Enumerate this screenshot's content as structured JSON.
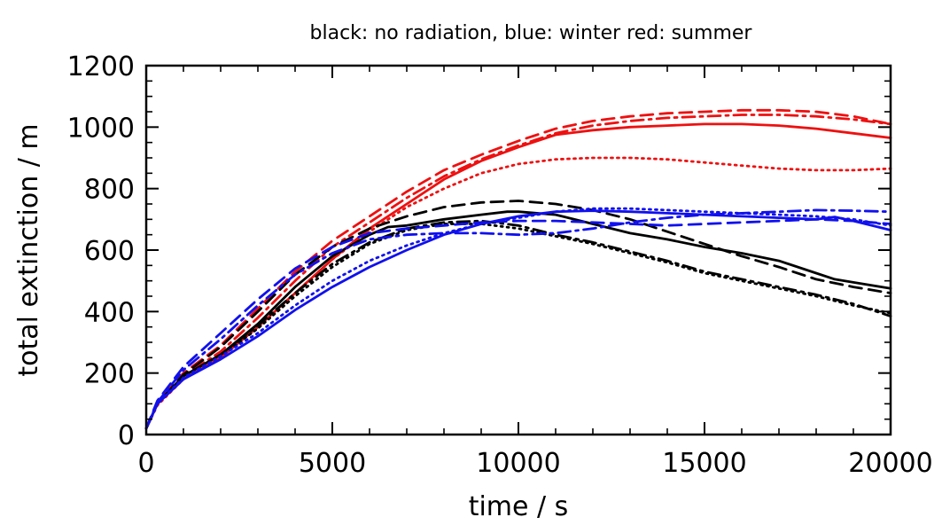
{
  "chart_data": {
    "type": "line",
    "title": "black: no radiation, blue: winter red: summer",
    "xlabel": "time / s",
    "ylabel": "total extinction / m",
    "xlim": [
      0,
      20000
    ],
    "ylim": [
      0,
      1200
    ],
    "xticks": [
      0,
      5000,
      10000,
      15000,
      20000
    ],
    "yticks": [
      0,
      200,
      400,
      600,
      800,
      1000,
      1200
    ],
    "grid": false,
    "colors": {
      "black": "#000000",
      "blue": "#1010ee",
      "red": "#ee1010"
    },
    "series": [
      {
        "color": "red",
        "dash": "solid",
        "x": [
          0,
          300,
          1000,
          2000,
          3000,
          4000,
          5000,
          6000,
          7000,
          8000,
          9000,
          10000,
          11000,
          12000,
          13000,
          14000,
          15000,
          16000,
          17000,
          18000,
          19000,
          20000
        ],
        "y": [
          20,
          100,
          180,
          250,
          350,
          460,
          570,
          670,
          750,
          830,
          890,
          935,
          975,
          990,
          1000,
          1005,
          1010,
          1010,
          1005,
          995,
          980,
          965
        ]
      },
      {
        "color": "red",
        "dash": "dashed",
        "x": [
          0,
          300,
          1000,
          2000,
          3000,
          4000,
          5000,
          6000,
          7000,
          8000,
          9000,
          10000,
          11000,
          12000,
          13000,
          14000,
          15000,
          16000,
          17000,
          18000,
          19000,
          20000
        ],
        "y": [
          20,
          105,
          200,
          290,
          410,
          530,
          630,
          710,
          790,
          860,
          910,
          955,
          995,
          1020,
          1035,
          1045,
          1050,
          1055,
          1055,
          1050,
          1035,
          1010
        ]
      },
      {
        "color": "red",
        "dash": "dashdot",
        "x": [
          0,
          300,
          1000,
          2000,
          3000,
          4000,
          5000,
          6000,
          7000,
          8000,
          9000,
          10000,
          11000,
          12000,
          13000,
          14000,
          15000,
          16000,
          17000,
          18000,
          19000,
          20000
        ],
        "y": [
          20,
          100,
          190,
          270,
          380,
          500,
          610,
          690,
          770,
          840,
          895,
          940,
          980,
          1005,
          1020,
          1030,
          1035,
          1040,
          1040,
          1035,
          1025,
          1010
        ]
      },
      {
        "color": "red",
        "dash": "dotted",
        "x": [
          0,
          300,
          1000,
          2000,
          3000,
          4000,
          5000,
          6000,
          7000,
          8000,
          9000,
          10000,
          11000,
          12000,
          13000,
          14000,
          15000,
          16000,
          17000,
          18000,
          19000,
          20000
        ],
        "y": [
          20,
          95,
          180,
          250,
          350,
          460,
          570,
          660,
          740,
          800,
          850,
          880,
          895,
          900,
          900,
          895,
          885,
          875,
          865,
          860,
          860,
          865
        ]
      },
      {
        "color": "black",
        "dash": "solid",
        "x": [
          0,
          300,
          1000,
          2000,
          3000,
          4000,
          5000,
          6000,
          6500,
          7000,
          8000,
          9000,
          9700,
          10000,
          11000,
          12000,
          13000,
          14000,
          15000,
          16000,
          17000,
          18000,
          18500,
          19000,
          20000
        ],
        "y": [
          20,
          100,
          190,
          260,
          360,
          480,
          580,
          650,
          675,
          680,
          700,
          715,
          725,
          725,
          715,
          685,
          655,
          635,
          610,
          590,
          565,
          525,
          505,
          495,
          475
        ]
      },
      {
        "color": "black",
        "dash": "dashed",
        "x": [
          0,
          300,
          1000,
          2000,
          3000,
          4000,
          5000,
          6000,
          7000,
          8000,
          9000,
          10000,
          11000,
          12000,
          13000,
          14000,
          15000,
          16000,
          17000,
          18000,
          19000,
          20000
        ],
        "y": [
          20,
          100,
          195,
          285,
          400,
          520,
          610,
          670,
          710,
          740,
          755,
          760,
          750,
          730,
          700,
          660,
          620,
          580,
          545,
          505,
          480,
          460
        ]
      },
      {
        "color": "black",
        "dash": "dashdot",
        "x": [
          0,
          300,
          1000,
          2000,
          3000,
          4000,
          5000,
          6000,
          7000,
          8000,
          9000,
          10000,
          11000,
          12000,
          13000,
          14000,
          15000,
          16000,
          17000,
          18000,
          19000,
          20000
        ],
        "y": [
          20,
          100,
          190,
          260,
          355,
          460,
          555,
          625,
          670,
          690,
          695,
          680,
          650,
          625,
          595,
          565,
          530,
          505,
          480,
          455,
          425,
          385
        ]
      },
      {
        "color": "black",
        "dash": "dotted",
        "x": [
          0,
          300,
          1000,
          2000,
          3000,
          4000,
          5000,
          6000,
          7000,
          8000,
          9000,
          10000,
          11000,
          12000,
          13000,
          14000,
          15000,
          16000,
          17000,
          18000,
          19000,
          20000
        ],
        "y": [
          20,
          100,
          185,
          255,
          345,
          450,
          545,
          620,
          665,
          685,
          685,
          670,
          645,
          620,
          590,
          560,
          525,
          500,
          475,
          450,
          420,
          395
        ]
      },
      {
        "color": "blue",
        "dash": "solid",
        "x": [
          0,
          300,
          1000,
          2000,
          3000,
          4000,
          5000,
          6000,
          7000,
          8000,
          9000,
          10000,
          11000,
          12000,
          13000,
          14000,
          15000,
          16000,
          17000,
          18000,
          18500,
          19000,
          20000
        ],
        "y": [
          20,
          100,
          180,
          245,
          320,
          405,
          480,
          545,
          600,
          650,
          685,
          710,
          725,
          728,
          725,
          720,
          715,
          710,
          705,
          700,
          708,
          695,
          665
        ]
      },
      {
        "color": "blue",
        "dash": "dashed",
        "x": [
          0,
          300,
          1000,
          2000,
          3000,
          4000,
          5000,
          6000,
          7000,
          8000,
          9000,
          10000,
          11000,
          12000,
          13000,
          14000,
          15000,
          16000,
          17000,
          18000,
          19000,
          20000
        ],
        "y": [
          20,
          110,
          220,
          330,
          440,
          540,
          610,
          655,
          670,
          680,
          690,
          695,
          695,
          690,
          685,
          680,
          685,
          690,
          695,
          700,
          695,
          685
        ]
      },
      {
        "color": "blue",
        "dash": "dashdot",
        "x": [
          0,
          300,
          1000,
          2000,
          3000,
          4000,
          5000,
          6000,
          7000,
          8000,
          9000,
          10000,
          11000,
          12000,
          13000,
          14000,
          15000,
          16000,
          17000,
          18000,
          19000,
          20000
        ],
        "y": [
          20,
          105,
          210,
          310,
          420,
          520,
          590,
          635,
          650,
          655,
          655,
          650,
          655,
          670,
          690,
          705,
          715,
          720,
          725,
          730,
          728,
          725
        ]
      },
      {
        "color": "blue",
        "dash": "dotted",
        "x": [
          0,
          300,
          1000,
          2000,
          3000,
          4000,
          5000,
          6000,
          7000,
          8000,
          9000,
          10000,
          11000,
          12000,
          13000,
          14000,
          15000,
          16000,
          17000,
          18000,
          19000,
          20000
        ],
        "y": [
          20,
          100,
          185,
          255,
          330,
          420,
          500,
          565,
          615,
          655,
          685,
          705,
          725,
          735,
          735,
          730,
          725,
          720,
          715,
          710,
          700,
          680
        ]
      }
    ]
  }
}
